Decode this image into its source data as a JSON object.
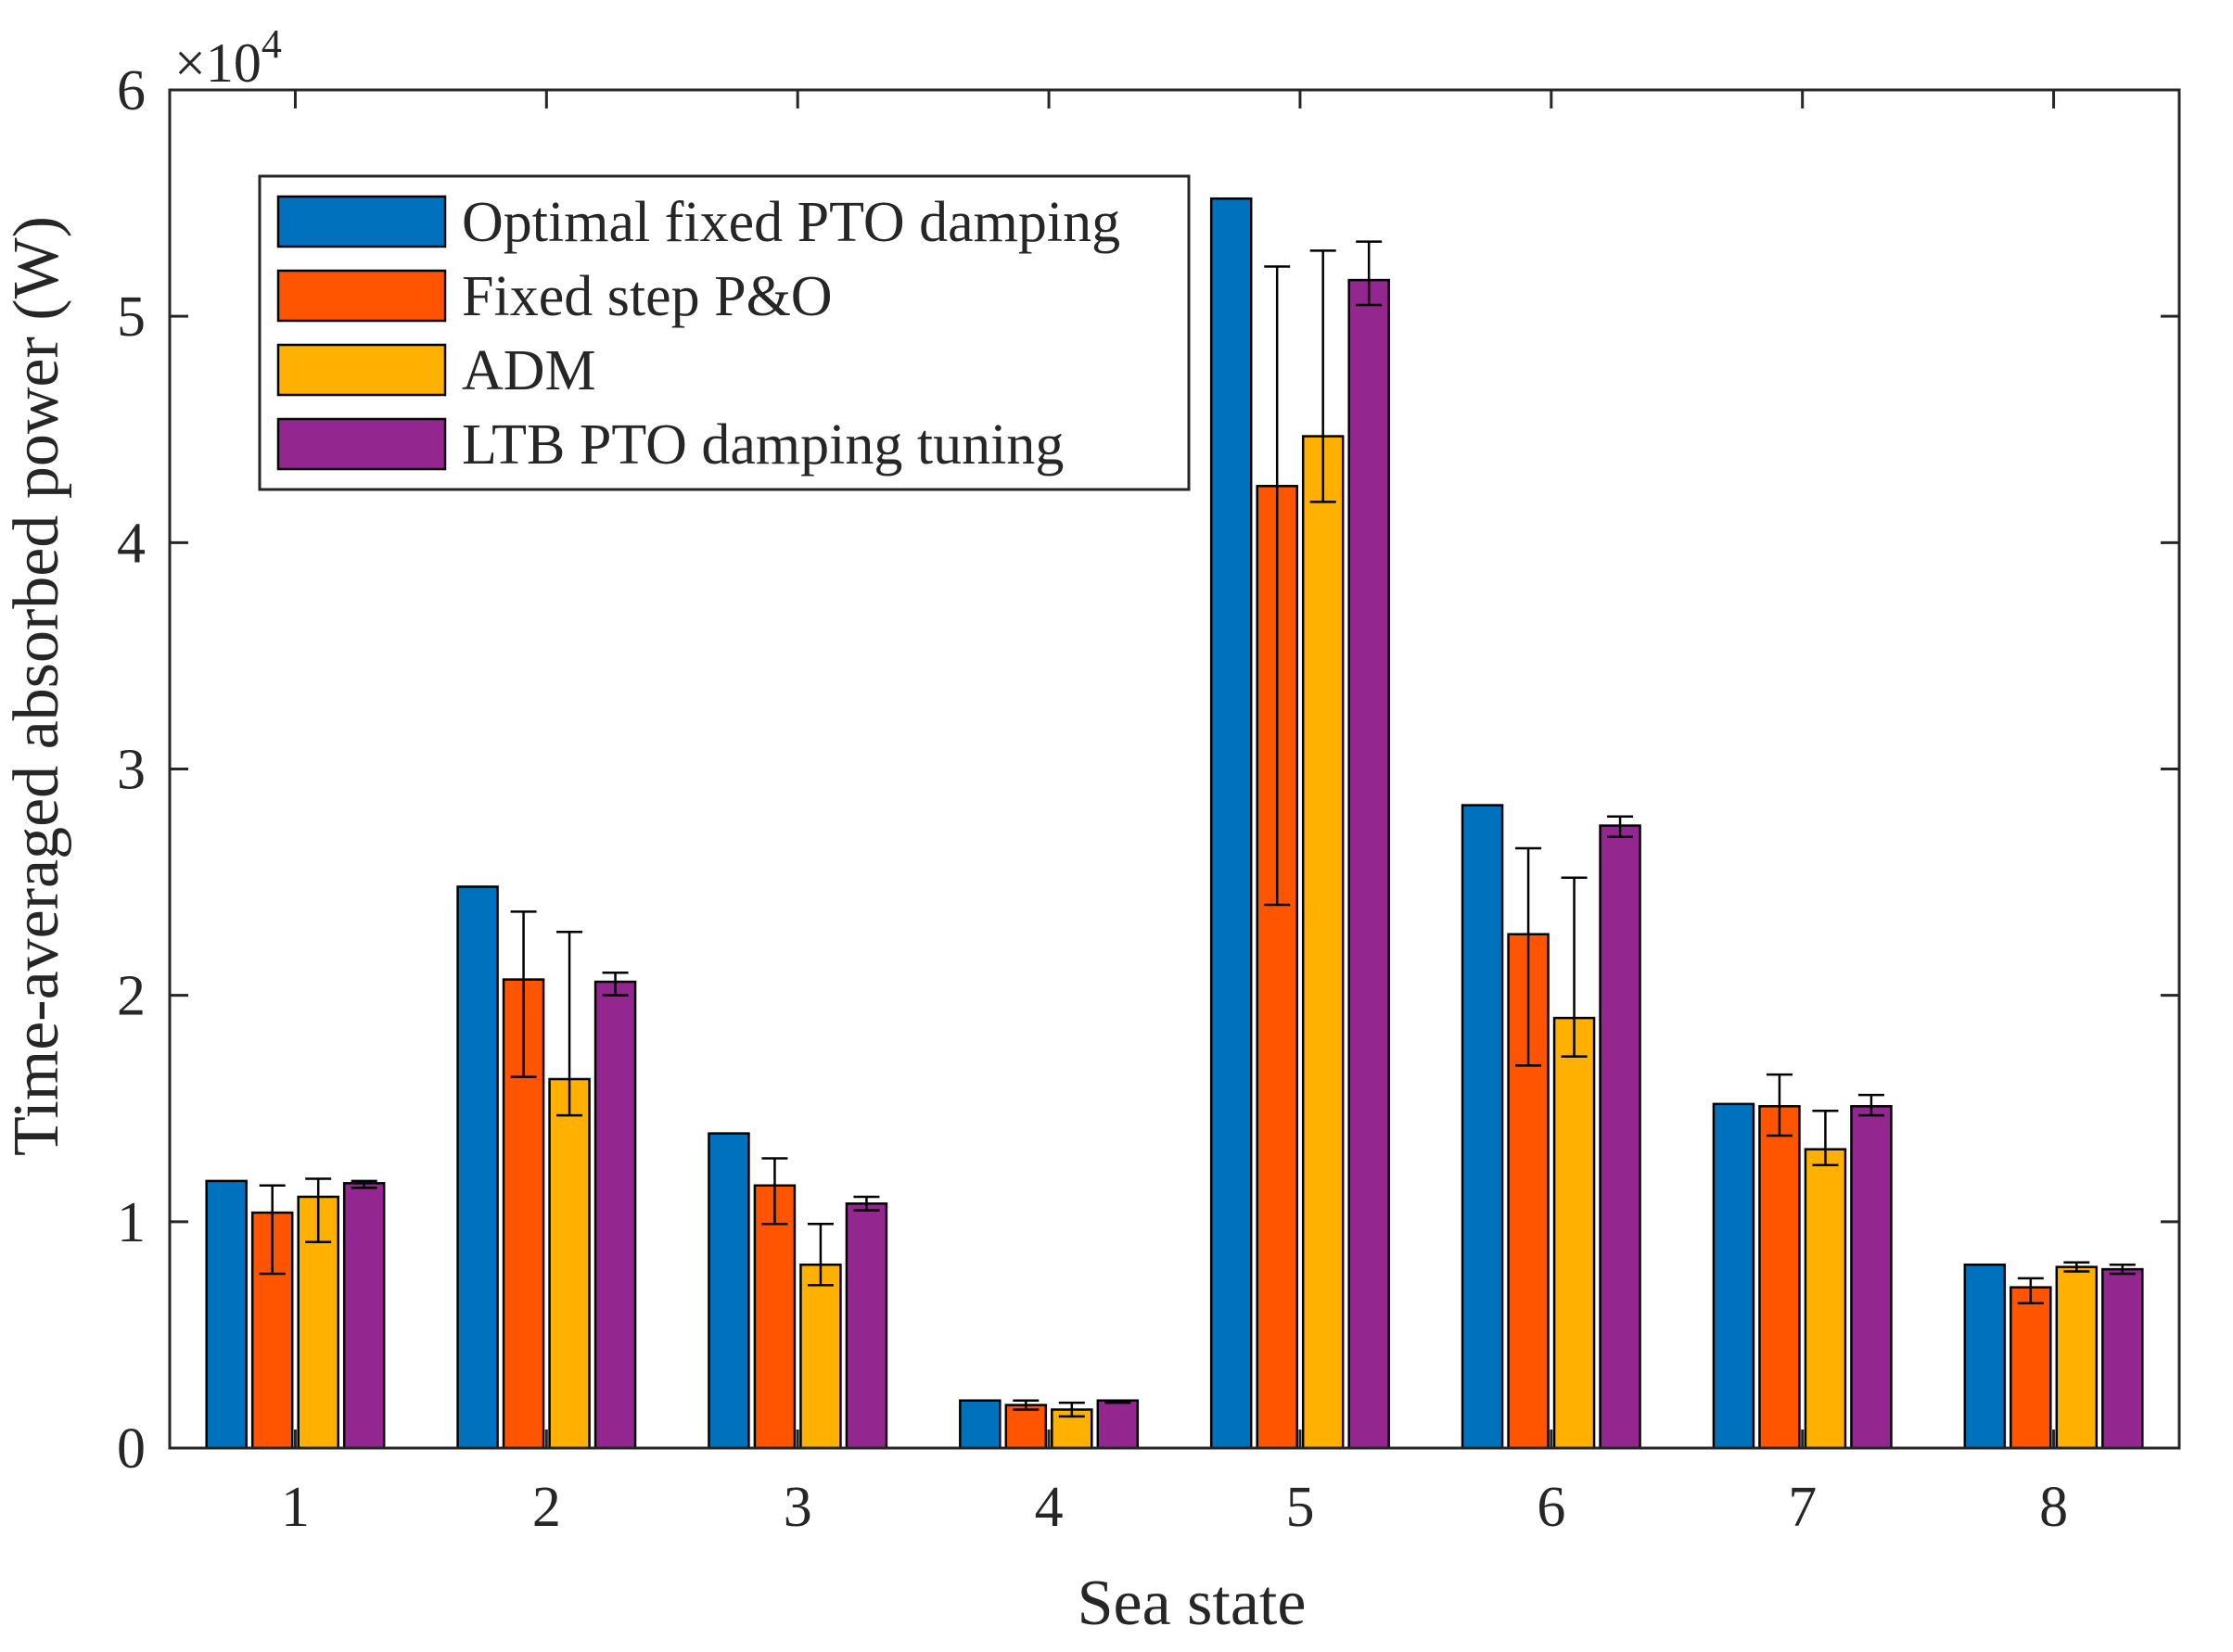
{
  "chart_data": {
    "type": "bar",
    "title": "",
    "xlabel": "Sea state",
    "ylabel": "Time-averaged absorbed power (W)",
    "y_exponent_label": "×10",
    "y_exponent_power": "4",
    "categories": [
      "1",
      "2",
      "3",
      "4",
      "5",
      "6",
      "7",
      "8"
    ],
    "ylim": [
      0,
      60000
    ],
    "yticks": [
      0,
      10000,
      20000,
      30000,
      40000,
      50000,
      60000
    ],
    "ytick_labels": [
      "0",
      "1",
      "2",
      "3",
      "4",
      "5",
      "6"
    ],
    "grid": false,
    "legend_position": "top-left",
    "series": [
      {
        "name": "Optimal fixed PTO damping",
        "color": "#0072BD",
        "values": [
          11800,
          24800,
          13900,
          2100,
          55200,
          28400,
          15200,
          8100
        ],
        "error_low": null,
        "error_high": null
      },
      {
        "name": "Fixed step P&O",
        "color": "#FF5500",
        "values": [
          10400,
          20700,
          11600,
          1900,
          42500,
          22700,
          15100,
          7100
        ],
        "error_low": [
          7700,
          16400,
          9900,
          1700,
          24000,
          16900,
          13800,
          6400
        ],
        "error_high": [
          11600,
          23700,
          12800,
          2100,
          52200,
          26500,
          16500,
          7500
        ]
      },
      {
        "name": "ADM",
        "color": "#FFB000",
        "values": [
          11100,
          16300,
          8100,
          1700,
          44700,
          19000,
          13200,
          8000
        ],
        "error_low": [
          9100,
          14700,
          7200,
          1400,
          41800,
          17300,
          12500,
          7800
        ],
        "error_high": [
          11900,
          22800,
          9900,
          2000,
          52900,
          25200,
          14900,
          8200
        ]
      },
      {
        "name": "LTB PTO damping tuning",
        "color": "#93278F",
        "values": [
          11700,
          20600,
          10800,
          2100,
          51600,
          27500,
          15100,
          7900
        ],
        "error_low": [
          11500,
          20000,
          10500,
          2000,
          50500,
          27000,
          14700,
          7700
        ],
        "error_high": [
          11800,
          21000,
          11100,
          2100,
          53300,
          27900,
          15600,
          8100
        ]
      }
    ]
  }
}
